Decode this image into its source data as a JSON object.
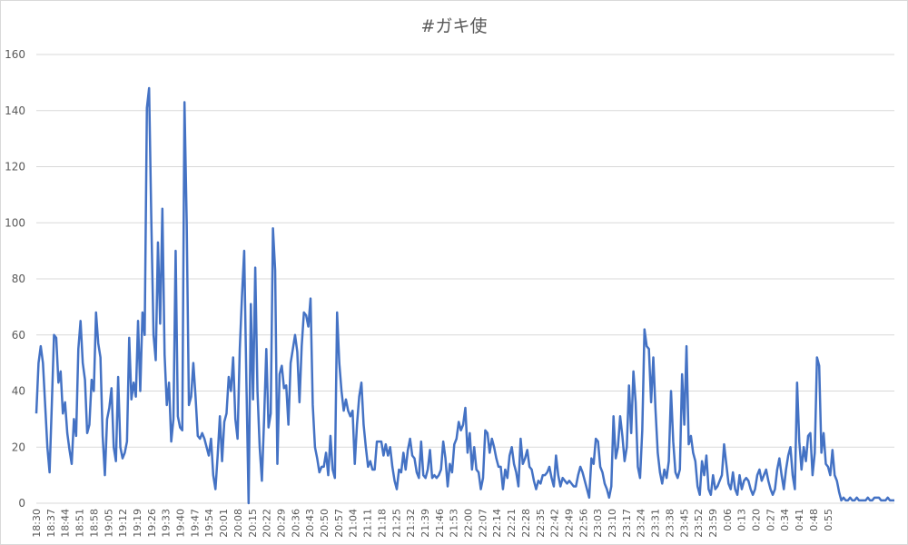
{
  "chart_data": {
    "type": "line",
    "title": "#ガキ使",
    "xlabel": "",
    "ylabel": "",
    "ylim": [
      0,
      160
    ],
    "yticks": [
      0,
      20,
      40,
      60,
      80,
      100,
      120,
      140,
      160
    ],
    "grid": true,
    "legend": "none",
    "line_color": "#4472c4",
    "grid_color": "#d9d9d9",
    "x_tick_labels": [
      "18:30",
      "18:37",
      "18:44",
      "18:51",
      "18:58",
      "19:05",
      "19:12",
      "19:19",
      "19:26",
      "19:33",
      "19:40",
      "19:47",
      "19:54",
      "20:01",
      "20:08",
      "20:15",
      "20:22",
      "20:29",
      "20:36",
      "20:43",
      "20:50",
      "20:57",
      "21:04",
      "21:11",
      "21:18",
      "21:25",
      "21:32",
      "21:39",
      "21:46",
      "21:53",
      "22:00",
      "22:07",
      "22:14",
      "22:21",
      "22:28",
      "22:35",
      "22:42",
      "22:49",
      "22:56",
      "23:03",
      "23:10",
      "23:17",
      "23:24",
      "23:31",
      "23:38",
      "23:45",
      "23:52",
      "23:59",
      "0:06",
      "0:13",
      "0:20",
      "0:27",
      "0:34",
      "0:41",
      "0:48",
      "0:55"
    ],
    "series": [
      {
        "values": [
          32,
          50,
          56,
          50,
          35,
          20,
          11,
          35,
          60,
          59,
          43,
          47,
          32,
          36,
          25,
          19,
          14,
          30,
          24,
          55,
          65,
          50,
          44,
          25,
          28,
          44,
          40,
          68,
          57,
          52,
          24,
          10,
          30,
          34,
          41,
          20,
          15,
          45,
          20,
          16,
          18,
          22,
          59,
          37,
          43,
          38,
          65,
          40,
          68,
          60,
          141,
          148,
          101,
          60,
          51,
          93,
          64,
          105,
          53,
          35,
          43,
          22,
          30,
          90,
          31,
          27,
          26,
          143,
          100,
          35,
          38,
          50,
          38,
          24,
          23,
          25,
          23,
          20,
          17,
          23,
          10,
          5,
          17,
          31,
          15,
          29,
          32,
          45,
          40,
          52,
          30,
          23,
          55,
          74,
          90,
          43,
          0,
          71,
          37,
          84,
          40,
          20,
          8,
          30,
          55,
          27,
          32,
          98,
          83,
          14,
          46,
          49,
          41,
          42,
          28,
          50,
          55,
          60,
          54,
          36,
          56,
          68,
          67,
          63,
          73,
          35,
          20,
          16,
          11,
          13,
          13,
          18,
          10,
          24,
          12,
          9,
          68,
          50,
          40,
          33,
          37,
          33,
          31,
          33,
          14,
          28,
          38,
          43,
          28,
          20,
          13,
          15,
          12,
          12,
          22,
          22,
          22,
          17,
          21,
          17,
          20,
          13,
          8,
          5,
          12,
          11,
          18,
          12,
          19,
          23,
          17,
          16,
          11,
          9,
          22,
          10,
          9,
          12,
          19,
          9,
          10,
          9,
          10,
          12,
          22,
          16,
          6,
          14,
          11,
          21,
          23,
          29,
          26,
          28,
          34,
          18,
          25,
          12,
          20,
          12,
          11,
          5,
          9,
          26,
          25,
          18,
          23,
          20,
          16,
          13,
          13,
          5,
          12,
          9,
          17,
          20,
          14,
          11,
          6,
          23,
          14,
          16,
          19,
          13,
          12,
          8,
          5,
          8,
          7,
          10,
          10,
          11,
          13,
          9,
          6,
          17,
          10,
          6,
          9,
          8,
          7,
          8,
          7,
          6,
          6,
          10,
          13,
          11,
          8,
          5,
          2,
          16,
          14,
          23,
          22,
          13,
          11,
          7,
          5,
          2,
          6,
          31,
          16,
          20,
          31,
          24,
          15,
          20,
          42,
          25,
          47,
          36,
          13,
          9,
          26,
          62,
          56,
          55,
          36,
          52,
          33,
          18,
          11,
          7,
          12,
          9,
          15,
          40,
          22,
          11,
          9,
          12,
          46,
          28,
          56,
          21,
          24,
          18,
          15,
          6,
          3,
          15,
          10,
          17,
          5,
          3,
          10,
          5,
          6,
          8,
          10,
          21,
          14,
          7,
          5,
          11,
          5,
          3,
          10,
          5,
          8,
          9,
          8,
          5,
          3,
          5,
          10,
          12,
          8,
          10,
          12,
          8,
          5,
          3,
          5,
          12,
          16,
          10,
          5,
          12,
          17,
          20,
          10,
          5,
          43,
          22,
          12,
          20,
          15,
          24,
          25,
          10,
          18,
          52,
          49,
          18,
          25,
          14,
          13,
          10,
          19,
          10,
          8,
          4,
          1,
          2,
          1,
          1,
          2,
          1,
          1,
          2,
          1,
          1,
          1,
          1,
          2,
          1,
          1,
          2,
          2,
          2,
          1,
          1,
          1,
          2,
          1,
          1,
          1
        ]
      }
    ]
  }
}
